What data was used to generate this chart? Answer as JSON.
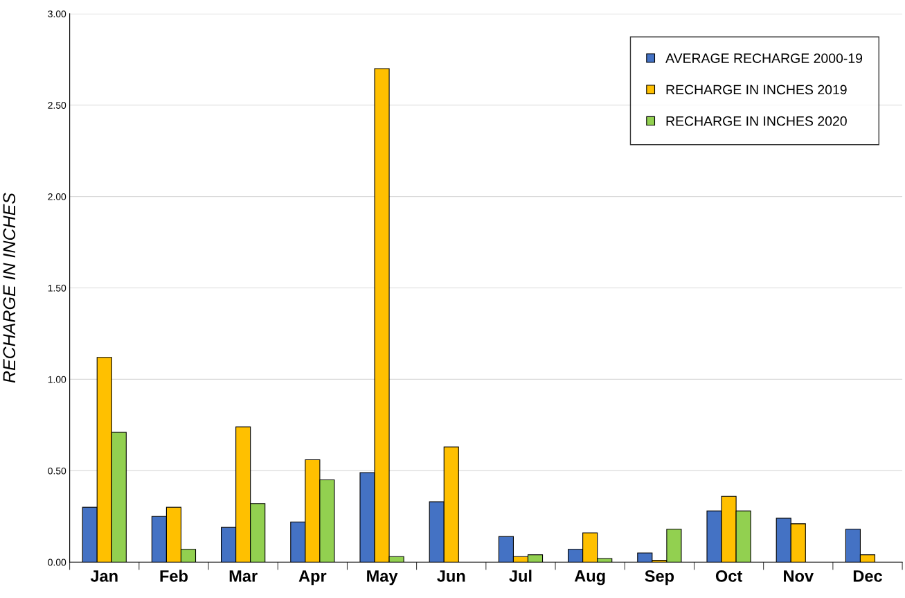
{
  "chart_data": {
    "type": "bar",
    "ylabel": "RECHARGE IN INCHES",
    "categories": [
      "Jan",
      "Feb",
      "Mar",
      "Apr",
      "May",
      "Jun",
      "Jul",
      "Aug",
      "Sep",
      "Oct",
      "Nov",
      "Dec"
    ],
    "series": [
      {
        "name": "AVERAGE RECHARGE 2000-19",
        "color": "#4472c4",
        "values": [
          0.3,
          0.25,
          0.19,
          0.22,
          0.49,
          0.33,
          0.14,
          0.07,
          0.05,
          0.28,
          0.24,
          0.18
        ]
      },
      {
        "name": "RECHARGE IN INCHES 2019",
        "color": "#ffc000",
        "values": [
          1.12,
          0.3,
          0.74,
          0.56,
          2.7,
          0.63,
          0.03,
          0.16,
          0.01,
          0.36,
          0.21,
          0.04
        ]
      },
      {
        "name": "RECHARGE IN INCHES 2020",
        "color": "#92d050",
        "values": [
          0.71,
          0.07,
          0.32,
          0.45,
          0.03,
          null,
          0.04,
          0.02,
          0.18,
          0.28,
          null,
          null
        ]
      }
    ],
    "ylim": [
      0,
      3
    ],
    "yticks": [
      {
        "value": 0,
        "label": "0.00"
      },
      {
        "value": 0.5,
        "label": "0.50"
      },
      {
        "value": 1,
        "label": "1.00"
      },
      {
        "value": 1.5,
        "label": "1.50"
      },
      {
        "value": 2,
        "label": "2.00"
      },
      {
        "value": 2.5,
        "label": "2.50"
      },
      {
        "value": 3,
        "label": "3.00"
      }
    ],
    "grid": "y",
    "legend": "top right"
  }
}
